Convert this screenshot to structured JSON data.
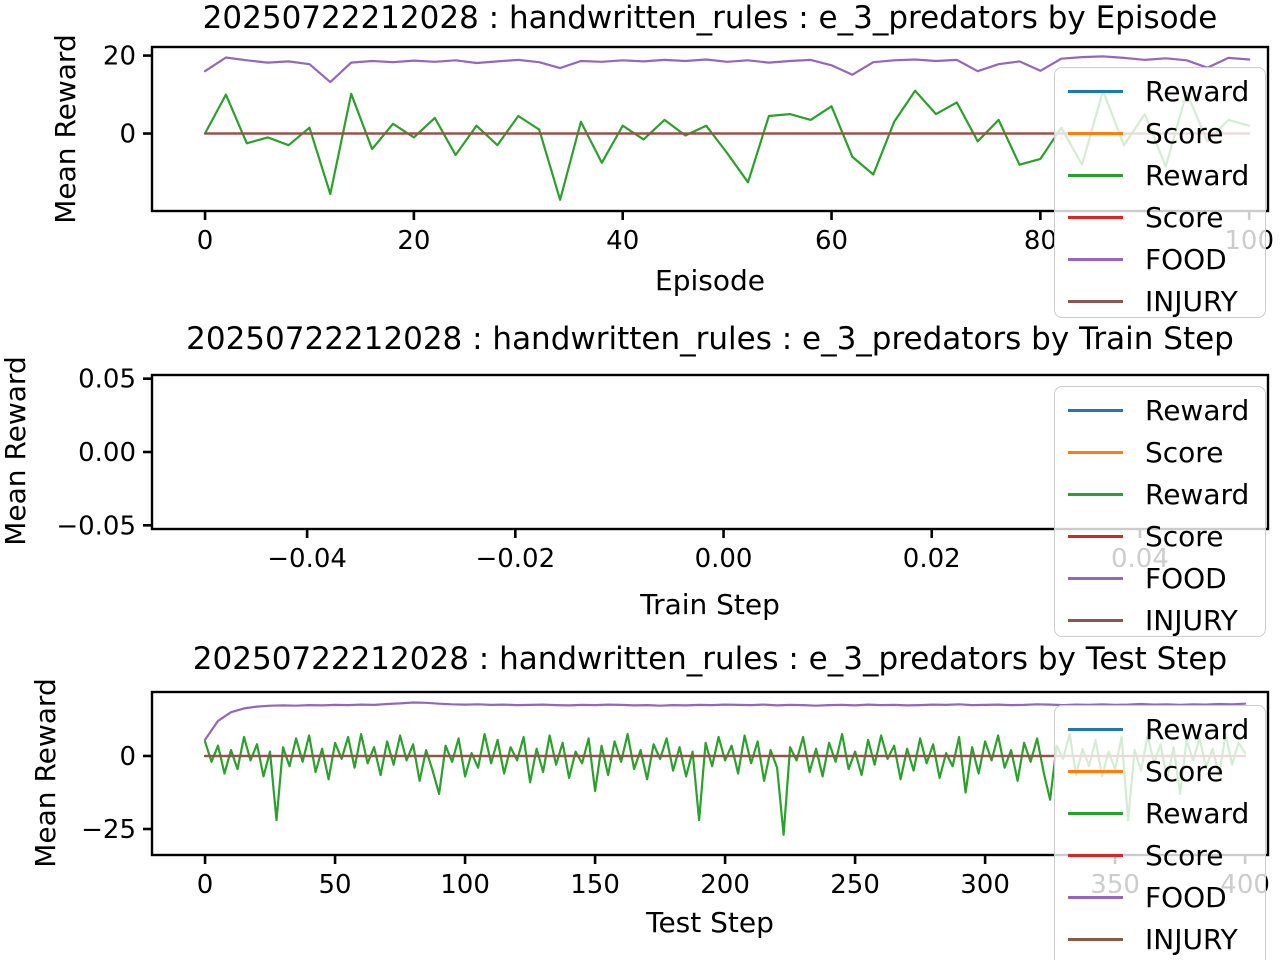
{
  "figure": {
    "background": "#ffffff",
    "text_color": "#000000",
    "spine_color": "#000000",
    "legend_border_color": "#cccccc"
  },
  "legend": {
    "entries": [
      {
        "label": "Reward",
        "color": "#1f77b4"
      },
      {
        "label": "Score",
        "color": "#ff7f0e"
      },
      {
        "label": "Reward",
        "color": "#2ca02c"
      },
      {
        "label": "Score",
        "color": "#d62728"
      },
      {
        "label": "FOOD",
        "color": "#9467bd"
      },
      {
        "label": "INJURY",
        "color": "#8c564b"
      }
    ],
    "position": "upper right"
  },
  "chart_data": [
    {
      "type": "line",
      "title": "20250722212028 : handwritten_rules : e_3_predators by Episode",
      "xlabel": "Episode",
      "ylabel": "Mean Reward",
      "xlim": [
        -5.08,
        101.8
      ],
      "ylim": [
        -19.87,
        22.2
      ],
      "grid": false,
      "xticks": [
        {
          "label": "0",
          "v": 0
        },
        {
          "label": "20",
          "v": 20
        },
        {
          "label": "40",
          "v": 40
        },
        {
          "label": "60",
          "v": 60
        },
        {
          "label": "80",
          "v": 80
        },
        {
          "label": "100",
          "v": 100
        }
      ],
      "yticks": [
        {
          "label": "20",
          "v": 20
        },
        {
          "label": "0",
          "v": 0
        }
      ],
      "series": [
        {
          "name": "Reward",
          "color": "#1f77b4",
          "x0": 0,
          "dx": 2,
          "values": []
        },
        {
          "name": "Score",
          "color": "#ff7f0e",
          "x0": 0,
          "dx": 2,
          "values": []
        },
        {
          "name": "Reward",
          "color": "#2ca02c",
          "x0": 0,
          "dx": 2,
          "values": [
            0,
            10,
            -2.5,
            -1,
            -3,
            1.5,
            -15.5,
            10.2,
            -4,
            2.5,
            -1,
            4,
            -5.5,
            2,
            -3,
            4.5,
            1,
            -17,
            3,
            -7.5,
            2,
            -1.5,
            3.5,
            -0.5,
            2,
            -5,
            -12.5,
            4.5,
            5,
            3.5,
            7,
            -6,
            -10.5,
            3,
            11,
            5,
            8,
            -2,
            3.5,
            -8,
            -6.5,
            1.5,
            -8,
            11,
            -3,
            5,
            -8.5,
            10.5,
            -2,
            3.5,
            2
          ]
        },
        {
          "name": "Score",
          "color": "#d62728",
          "x0": 0,
          "dx": 100,
          "values": [
            0,
            0
          ]
        },
        {
          "name": "FOOD",
          "color": "#9467bd",
          "x0": 0,
          "dx": 2,
          "values": [
            16,
            19.5,
            18.8,
            18.2,
            18.5,
            17.8,
            13.2,
            18.2,
            18.6,
            18.3,
            18.7,
            18.4,
            18.8,
            18.1,
            18.5,
            18.9,
            18.3,
            16.8,
            18.6,
            18.4,
            18.8,
            18.5,
            18.9,
            18.6,
            19.0,
            18.4,
            18.8,
            18.2,
            18.6,
            18.9,
            17.5,
            15.1,
            18.3,
            18.8,
            19.0,
            18.6,
            18.9,
            16.0,
            17.8,
            18.5,
            16.1,
            19.2,
            19.6,
            19.8,
            19.4,
            18.9,
            19.3,
            18.8,
            16.9,
            19.4,
            19.0
          ]
        },
        {
          "name": "INJURY",
          "color": "#8c564b",
          "x0": 0,
          "dx": 100,
          "values": [
            0,
            0
          ]
        }
      ]
    },
    {
      "type": "line",
      "title": "20250722212028 : handwritten_rules : e_3_predators by Train Step",
      "xlabel": "Train Step",
      "ylabel": "Mean Reward",
      "xlim": [
        -0.0549,
        0.0523
      ],
      "ylim": [
        -0.0525,
        0.0525
      ],
      "grid": false,
      "xticks": [
        {
          "label": "−0.04",
          "v": -0.04
        },
        {
          "label": "−0.02",
          "v": -0.02
        },
        {
          "label": "0.00",
          "v": 0
        },
        {
          "label": "0.02",
          "v": 0.02
        },
        {
          "label": "0.04",
          "v": 0.04
        }
      ],
      "yticks": [
        {
          "label": "0.05",
          "v": 0.05
        },
        {
          "label": "0.00",
          "v": 0
        },
        {
          "label": "−0.05",
          "v": -0.05
        }
      ],
      "series": [
        {
          "name": "Reward",
          "color": "#1f77b4",
          "x0": 0,
          "dx": 1,
          "values": []
        },
        {
          "name": "Score",
          "color": "#ff7f0e",
          "x0": 0,
          "dx": 1,
          "values": []
        },
        {
          "name": "Reward",
          "color": "#2ca02c",
          "x0": 0,
          "dx": 1,
          "values": []
        },
        {
          "name": "Score",
          "color": "#d62728",
          "x0": 0,
          "dx": 1,
          "values": []
        },
        {
          "name": "FOOD",
          "color": "#9467bd",
          "x0": 0,
          "dx": 1,
          "values": []
        },
        {
          "name": "INJURY",
          "color": "#8c564b",
          "x0": 0,
          "dx": 1,
          "values": []
        }
      ]
    },
    {
      "type": "line",
      "title": "20250722212028 : handwritten_rules : e_3_predators by Test Step",
      "xlabel": "Test Step",
      "ylabel": "Mean Reward",
      "xlim": [
        -20.4,
        408.8
      ],
      "ylim": [
        -33.9,
        21.9
      ],
      "grid": false,
      "xticks": [
        {
          "label": "0",
          "v": 0
        },
        {
          "label": "50",
          "v": 50
        },
        {
          "label": "100",
          "v": 100
        },
        {
          "label": "150",
          "v": 150
        },
        {
          "label": "200",
          "v": 200
        },
        {
          "label": "250",
          "v": 250
        },
        {
          "label": "300",
          "v": 300
        },
        {
          "label": "350",
          "v": 350
        },
        {
          "label": "400",
          "v": 400
        }
      ],
      "yticks": [
        {
          "label": "0",
          "v": 0
        },
        {
          "label": "−25",
          "v": -25
        }
      ],
      "series": [
        {
          "name": "Reward",
          "color": "#1f77b4",
          "x0": 0,
          "dx": 2.5,
          "values": []
        },
        {
          "name": "Score",
          "color": "#ff7f0e",
          "x0": 0,
          "dx": 2.5,
          "values": []
        },
        {
          "name": "Reward",
          "color": "#2ca02c",
          "x0": 0,
          "dx": 2.5,
          "values": [
            5.0,
            -2.0,
            3.5,
            -6.0,
            2.0,
            -4.5,
            6.5,
            -1.5,
            4.0,
            -7.0,
            1.5,
            -22.0,
            3.0,
            -3.5,
            6.0,
            -2.0,
            7.0,
            -5.5,
            2.5,
            -8.0,
            4.5,
            -1.0,
            6.5,
            -4.0,
            7.5,
            -2.5,
            3.0,
            -6.5,
            5.0,
            -3.0,
            7.0,
            -1.5,
            4.0,
            -8.5,
            2.0,
            -5.0,
            -13.0,
            3.5,
            -2.0,
            6.0,
            -7.0,
            1.0,
            -4.0,
            7.5,
            -2.5,
            5.5,
            -6.0,
            3.0,
            -1.5,
            6.5,
            -9.0,
            2.5,
            -5.5,
            7.0,
            -3.0,
            4.5,
            -7.5,
            1.5,
            -2.5,
            6.0,
            -12.0,
            3.5,
            -6.5,
            5.0,
            -2.0,
            7.5,
            -4.5,
            2.0,
            -8.0,
            4.0,
            -1.0,
            6.0,
            -5.0,
            3.0,
            -7.0,
            1.5,
            -22.0,
            4.5,
            -3.5,
            6.5,
            -1.5,
            3.5,
            -6.0,
            7.0,
            -2.5,
            5.0,
            -8.5,
            2.0,
            -4.0,
            -27.0,
            3.0,
            -1.5,
            6.5,
            -5.5,
            2.5,
            -7.0,
            4.5,
            -2.0,
            7.5,
            -4.5,
            1.5,
            -6.5,
            5.5,
            -3.0,
            7.0,
            -1.0,
            3.5,
            -8.0,
            2.5,
            -5.0,
            6.0,
            -2.5,
            4.0,
            -7.5,
            1.0,
            -3.5,
            6.5,
            -12.5,
            3.0,
            -6.0,
            5.0,
            -1.5,
            7.0,
            -4.0,
            2.0,
            -8.5,
            4.5,
            -2.0,
            6.0,
            -5.5,
            -15.0,
            3.5,
            -1.0,
            7.5,
            -6.5,
            2.5,
            -3.5,
            5.5,
            -7.0,
            1.5,
            -4.5,
            6.5,
            -22.0,
            2.0,
            -5.0,
            7.0,
            -2.5,
            4.0,
            -8.0,
            3.0,
            -13.0,
            5.5,
            -1.5,
            6.0,
            -4.0,
            2.5,
            -6.5,
            7.5,
            -3.0,
            4.5,
            1.0
          ]
        },
        {
          "name": "Score",
          "color": "#d62728",
          "x0": 0,
          "dx": 400,
          "values": [
            0,
            0
          ]
        },
        {
          "name": "FOOD",
          "color": "#9467bd",
          "x0": 0,
          "dx": 5,
          "values": [
            5.5,
            12.0,
            15.0,
            16.3,
            16.9,
            17.2,
            17.3,
            17.2,
            17.4,
            17.3,
            17.5,
            17.4,
            17.6,
            17.5,
            17.8,
            18.0,
            18.3,
            18.2,
            17.9,
            17.7,
            17.6,
            17.7,
            17.5,
            17.6,
            17.4,
            17.5,
            17.6,
            17.4,
            17.3,
            17.5,
            17.4,
            17.6,
            17.5,
            17.3,
            17.4,
            17.2,
            17.4,
            17.3,
            17.5,
            17.4,
            17.6,
            17.5,
            17.4,
            17.6,
            17.3,
            17.5,
            17.4,
            17.2,
            17.4,
            17.5,
            17.3,
            17.6,
            17.4,
            17.5,
            17.3,
            17.4,
            17.6,
            17.5,
            17.7,
            17.4,
            17.5,
            17.6,
            17.4,
            17.5,
            17.7,
            17.6,
            17.4,
            17.6,
            17.5,
            17.7,
            17.5,
            17.6,
            17.8,
            17.6,
            17.7,
            17.5,
            17.7,
            17.6,
            17.8,
            17.7,
            17.9
          ]
        },
        {
          "name": "INJURY",
          "color": "#8c564b",
          "x0": 0,
          "dx": 400,
          "values": [
            0,
            0
          ]
        }
      ]
    }
  ]
}
